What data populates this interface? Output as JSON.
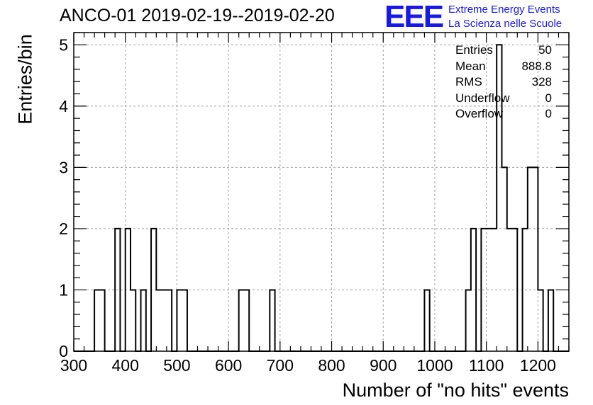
{
  "chart_data": {
    "type": "bar",
    "title": "ANCO-01 2019-02-19--2019-02-20",
    "xlabel": "Number of \"no hits\" events",
    "ylabel": "Entries/bin",
    "xlim": [
      300,
      1260
    ],
    "ylim": [
      0,
      5.2
    ],
    "grid": true,
    "bin_width": 10,
    "bins": [
      {
        "x": 340,
        "value": 1
      },
      {
        "x": 350,
        "value": 1
      },
      {
        "x": 380,
        "value": 2
      },
      {
        "x": 400,
        "value": 2
      },
      {
        "x": 410,
        "value": 1
      },
      {
        "x": 430,
        "value": 1
      },
      {
        "x": 450,
        "value": 2
      },
      {
        "x": 460,
        "value": 1
      },
      {
        "x": 470,
        "value": 1
      },
      {
        "x": 480,
        "value": 1
      },
      {
        "x": 500,
        "value": 1
      },
      {
        "x": 510,
        "value": 1
      },
      {
        "x": 620,
        "value": 1
      },
      {
        "x": 630,
        "value": 1
      },
      {
        "x": 680,
        "value": 1
      },
      {
        "x": 980,
        "value": 1
      },
      {
        "x": 1060,
        "value": 1
      },
      {
        "x": 1070,
        "value": 2
      },
      {
        "x": 1090,
        "value": 2
      },
      {
        "x": 1100,
        "value": 2
      },
      {
        "x": 1110,
        "value": 2
      },
      {
        "x": 1120,
        "value": 5
      },
      {
        "x": 1130,
        "value": 3
      },
      {
        "x": 1140,
        "value": 2
      },
      {
        "x": 1150,
        "value": 2
      },
      {
        "x": 1170,
        "value": 2
      },
      {
        "x": 1180,
        "value": 3
      },
      {
        "x": 1190,
        "value": 3
      },
      {
        "x": 1200,
        "value": 1
      },
      {
        "x": 1220,
        "value": 1
      }
    ],
    "x_ticks": [
      300,
      400,
      500,
      600,
      700,
      800,
      900,
      1000,
      1100,
      1200
    ],
    "y_ticks": [
      0,
      1,
      2,
      3,
      4,
      5
    ],
    "stats": [
      {
        "label": "Entries",
        "value": "50"
      },
      {
        "label": "Mean",
        "value": "888.8"
      },
      {
        "label": "RMS",
        "value": "328"
      },
      {
        "label": "Underflow",
        "value": "0"
      },
      {
        "label": "Overflow",
        "value": "0"
      }
    ]
  },
  "logo": {
    "mark": "EEE",
    "line1": "Extreme Energy Events",
    "line2": "La Scienza nelle Scuole"
  },
  "colors": {
    "line": "#000000",
    "grid": "#a0a0a0",
    "logo": "#1818e8"
  }
}
